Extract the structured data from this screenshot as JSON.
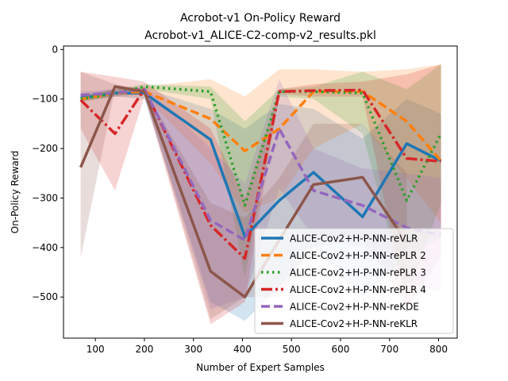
{
  "chart_data": {
    "type": "line",
    "title": "Acrobot-v1 On-Policy Reward",
    "subtitle": "Acrobot-v1_ALICE-C2-comp-v2_results.pkl",
    "xlabel": "Number of Expert Samples",
    "ylabel": "On-Policy Reward",
    "xlim": [
      35,
      838
    ],
    "ylim": [
      -583,
      7
    ],
    "xticks": [
      100,
      200,
      300,
      400,
      500,
      600,
      700,
      800
    ],
    "yticks": [
      0,
      -100,
      -200,
      -300,
      -400,
      -500
    ],
    "grid": false,
    "legend_position": "lower right",
    "x": [
      70,
      140,
      200,
      335,
      405,
      475,
      545,
      645,
      735,
      805
    ],
    "series": [
      {
        "name": "ALICE-Cov2+H-P-NN-reVLR",
        "color": "#1f77b4",
        "dash": "solid",
        "values": [
          -98,
          -88,
          -88,
          -182,
          -378,
          -305,
          -248,
          -338,
          -190,
          -225
        ],
        "band_upper": [
          -90,
          -80,
          -78,
          -120,
          -160,
          -110,
          -120,
          -180,
          -100,
          -130
        ],
        "band_lower": [
          -105,
          -95,
          -100,
          -510,
          -548,
          -480,
          -400,
          -500,
          -420,
          -380
        ]
      },
      {
        "name": "ALICE-Cov2+H-P-NN-rePLR 2",
        "color": "#ff7f0e",
        "dash": "dashed",
        "values": [
          -100,
          -88,
          -85,
          -140,
          -205,
          -160,
          -85,
          -85,
          -145,
          -225
        ],
        "band_upper": [
          -95,
          -80,
          -75,
          -60,
          -95,
          -40,
          -40,
          -45,
          -40,
          -30
        ],
        "band_lower": [
          -105,
          -95,
          -95,
          -230,
          -330,
          -300,
          -200,
          -150,
          -260,
          -350
        ]
      },
      {
        "name": "ALICE-Cov2+H-P-NN-rePLR 3",
        "color": "#2ca02c",
        "dash": "dotted",
        "values": [
          -100,
          -88,
          -75,
          -85,
          -315,
          -85,
          -85,
          -88,
          -305,
          -170
        ],
        "band_upper": [
          -95,
          -80,
          -70,
          -75,
          -145,
          -80,
          -75,
          -45,
          -80,
          -30
        ],
        "band_lower": [
          -105,
          -95,
          -80,
          -100,
          -460,
          -95,
          -100,
          -170,
          -500,
          -310
        ]
      },
      {
        "name": "ALICE-Cov2+H-P-NN-rePLR 4",
        "color": "#d62728",
        "dash": "dashdot",
        "values": [
          -102,
          -170,
          -80,
          -355,
          -422,
          -85,
          -83,
          -82,
          -220,
          -226
        ],
        "band_upper": [
          -45,
          -55,
          -65,
          -160,
          -300,
          -80,
          -70,
          -65,
          -50,
          -30
        ],
        "band_lower": [
          -160,
          -285,
          -95,
          -555,
          -510,
          -90,
          -95,
          -95,
          -520,
          -420
        ]
      },
      {
        "name": "ALICE-Cov2+H-P-NN-reKDE",
        "color": "#9467bd",
        "dash": "dashed",
        "values": [
          -92,
          -88,
          -80,
          -345,
          -385,
          -160,
          -285,
          -315,
          -360,
          -375
        ],
        "band_upper": [
          -85,
          -80,
          -75,
          -200,
          -270,
          -60,
          -200,
          -240,
          -250,
          -260
        ],
        "band_lower": [
          -100,
          -95,
          -90,
          -525,
          -500,
          -280,
          -380,
          -400,
          -470,
          -490
        ]
      },
      {
        "name": "ALICE-Cov2+H-P-NN-reKLR",
        "color": "#8c564b",
        "dash": "solid",
        "values": [
          -238,
          -75,
          -85,
          -448,
          -500,
          -385,
          -273,
          -258,
          -390,
          null
        ],
        "band_upper": [
          -45,
          -70,
          -80,
          -310,
          -340,
          -260,
          -150,
          -150,
          -250,
          null
        ],
        "band_lower": [
          -420,
          -80,
          -90,
          -545,
          -500,
          -500,
          -400,
          -380,
          -520,
          null
        ]
      }
    ]
  }
}
